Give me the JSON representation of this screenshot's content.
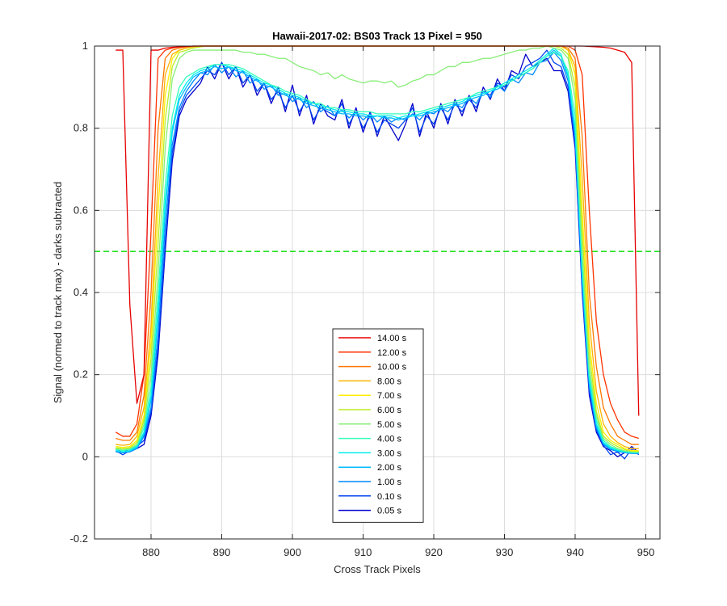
{
  "chart_data": {
    "type": "line",
    "title": "Hawaii-2017-02: BS03  Track 13 Pixel = 950",
    "xlabel": "Cross Track Pixels",
    "ylabel": "Signal (normed to track max) - darks subtracted",
    "xlim": [
      872,
      952
    ],
    "ylim": [
      -0.2,
      1.0
    ],
    "xticks": [
      880,
      890,
      900,
      910,
      920,
      930,
      940,
      950
    ],
    "yticks": [
      -0.2,
      0,
      0.2,
      0.4,
      0.6,
      0.8,
      1.0
    ],
    "grid": true,
    "legend_position": "lower-center",
    "x": [
      875,
      876,
      877,
      878,
      879,
      880,
      881,
      882,
      883,
      884,
      885,
      886,
      887,
      888,
      889,
      890,
      891,
      892,
      893,
      894,
      895,
      896,
      897,
      898,
      899,
      900,
      901,
      902,
      903,
      904,
      905,
      906,
      907,
      908,
      909,
      910,
      911,
      912,
      913,
      914,
      915,
      916,
      917,
      918,
      919,
      920,
      921,
      922,
      923,
      924,
      925,
      926,
      927,
      928,
      929,
      930,
      931,
      932,
      933,
      934,
      935,
      936,
      937,
      938,
      939,
      940,
      941,
      942,
      943,
      944,
      945,
      946,
      947,
      948,
      949
    ],
    "threshold": {
      "y": 0.5,
      "color": "#00dd00"
    },
    "series": [
      {
        "name": "14.00 s",
        "color": "#e60000",
        "values": [
          0.99,
          0.99,
          0.37,
          0.13,
          0.2,
          0.99,
          0.99,
          0.995,
          0.997,
          0.998,
          0.999,
          1.0,
          1.0,
          1.0,
          1.0,
          1.0,
          1.0,
          1.0,
          1.0,
          1.0,
          1.0,
          1.0,
          1.0,
          1.0,
          1.0,
          1.0,
          1.0,
          1.0,
          1.0,
          1.0,
          1.0,
          1.0,
          1.0,
          1.0,
          1.0,
          1.0,
          1.0,
          1.0,
          1.0,
          1.0,
          1.0,
          1.0,
          1.0,
          1.0,
          1.0,
          1.0,
          1.0,
          1.0,
          1.0,
          1.0,
          1.0,
          1.0,
          1.0,
          1.0,
          1.0,
          1.0,
          1.0,
          1.0,
          1.0,
          1.0,
          1.0,
          1.0,
          1.0,
          1.0,
          1.0,
          1.0,
          1.0,
          0.999,
          0.998,
          0.997,
          0.995,
          0.99,
          0.985,
          0.96,
          0.1
        ]
      },
      {
        "name": "12.00 s",
        "color": "#ff3300",
        "values": [
          0.06,
          0.05,
          0.05,
          0.08,
          0.2,
          0.55,
          0.97,
          0.99,
          0.995,
          0.998,
          0.999,
          1.0,
          1.0,
          1.0,
          1.0,
          1.0,
          1.0,
          1.0,
          1.0,
          1.0,
          1.0,
          1.0,
          1.0,
          1.0,
          1.0,
          1.0,
          1.0,
          1.0,
          1.0,
          1.0,
          1.0,
          1.0,
          1.0,
          1.0,
          1.0,
          1.0,
          1.0,
          1.0,
          1.0,
          1.0,
          1.0,
          1.0,
          1.0,
          1.0,
          1.0,
          1.0,
          1.0,
          1.0,
          1.0,
          1.0,
          1.0,
          1.0,
          1.0,
          1.0,
          1.0,
          1.0,
          1.0,
          1.0,
          1.0,
          1.0,
          1.0,
          1.0,
          1.0,
          1.0,
          1.0,
          0.99,
          0.93,
          0.6,
          0.33,
          0.2,
          0.13,
          0.09,
          0.06,
          0.05,
          0.045
        ]
      },
      {
        "name": "10.00 s",
        "color": "#ff7700",
        "values": [
          0.045,
          0.04,
          0.04,
          0.06,
          0.15,
          0.4,
          0.8,
          0.97,
          0.99,
          0.995,
          0.998,
          0.999,
          1.0,
          1.0,
          1.0,
          1.0,
          1.0,
          1.0,
          1.0,
          1.0,
          1.0,
          1.0,
          1.0,
          1.0,
          1.0,
          1.0,
          1.0,
          1.0,
          1.0,
          1.0,
          1.0,
          1.0,
          1.0,
          1.0,
          1.0,
          1.0,
          1.0,
          1.0,
          1.0,
          1.0,
          1.0,
          1.0,
          1.0,
          1.0,
          1.0,
          1.0,
          1.0,
          1.0,
          1.0,
          1.0,
          1.0,
          1.0,
          1.0,
          1.0,
          1.0,
          1.0,
          1.0,
          1.0,
          1.0,
          1.0,
          1.0,
          1.0,
          1.0,
          1.0,
          0.995,
          0.97,
          0.78,
          0.4,
          0.22,
          0.12,
          0.08,
          0.05,
          0.04,
          0.03,
          0.03
        ]
      },
      {
        "name": "8.00 s",
        "color": "#ffb300",
        "values": [
          0.03,
          0.028,
          0.03,
          0.05,
          0.12,
          0.32,
          0.68,
          0.93,
          0.98,
          0.99,
          0.995,
          0.998,
          1.0,
          1.0,
          1.0,
          1.0,
          1.0,
          1.0,
          1.0,
          1.0,
          1.0,
          1.0,
          1.0,
          1.0,
          1.0,
          1.0,
          1.0,
          1.0,
          1.0,
          1.0,
          1.0,
          1.0,
          1.0,
          1.0,
          1.0,
          1.0,
          1.0,
          1.0,
          1.0,
          1.0,
          1.0,
          1.0,
          1.0,
          1.0,
          1.0,
          1.0,
          1.0,
          1.0,
          1.0,
          1.0,
          1.0,
          1.0,
          1.0,
          1.0,
          1.0,
          1.0,
          1.0,
          1.0,
          1.0,
          1.0,
          1.0,
          1.0,
          1.0,
          1.0,
          0.99,
          0.95,
          0.68,
          0.33,
          0.16,
          0.08,
          0.05,
          0.035,
          0.025,
          0.02,
          0.02
        ]
      },
      {
        "name": "7.00 s",
        "color": "#ffee00",
        "values": [
          0.025,
          0.023,
          0.025,
          0.04,
          0.1,
          0.28,
          0.6,
          0.88,
          0.97,
          0.99,
          0.995,
          0.998,
          1.0,
          1.0,
          1.0,
          1.0,
          1.0,
          1.0,
          1.0,
          1.0,
          1.0,
          1.0,
          1.0,
          1.0,
          1.0,
          1.0,
          1.0,
          1.0,
          1.0,
          1.0,
          1.0,
          1.0,
          1.0,
          1.0,
          1.0,
          1.0,
          1.0,
          1.0,
          1.0,
          1.0,
          1.0,
          1.0,
          1.0,
          1.0,
          1.0,
          1.0,
          1.0,
          1.0,
          1.0,
          1.0,
          1.0,
          1.0,
          1.0,
          1.0,
          1.0,
          1.0,
          1.0,
          1.0,
          1.0,
          1.0,
          1.0,
          1.0,
          1.0,
          1.0,
          0.99,
          0.93,
          0.6,
          0.28,
          0.13,
          0.06,
          0.04,
          0.03,
          0.02,
          0.015,
          0.015
        ]
      },
      {
        "name": "6.00 s",
        "color": "#bbee22",
        "values": [
          0.022,
          0.02,
          0.022,
          0.035,
          0.09,
          0.24,
          0.52,
          0.82,
          0.95,
          0.985,
          0.99,
          0.995,
          0.998,
          1.0,
          1.0,
          1.0,
          1.0,
          1.0,
          1.0,
          1.0,
          1.0,
          1.0,
          1.0,
          1.0,
          1.0,
          1.0,
          1.0,
          1.0,
          1.0,
          1.0,
          1.0,
          1.0,
          1.0,
          1.0,
          1.0,
          1.0,
          1.0,
          1.0,
          1.0,
          1.0,
          1.0,
          1.0,
          1.0,
          1.0,
          1.0,
          1.0,
          1.0,
          1.0,
          1.0,
          1.0,
          1.0,
          1.0,
          1.0,
          1.0,
          1.0,
          1.0,
          1.0,
          1.0,
          1.0,
          1.0,
          1.0,
          1.0,
          1.0,
          0.995,
          0.98,
          0.9,
          0.55,
          0.25,
          0.11,
          0.05,
          0.035,
          0.025,
          0.018,
          0.014,
          0.013
        ]
      },
      {
        "name": "5.00 s",
        "color": "#88ee77",
        "values": [
          0.02,
          0.018,
          0.02,
          0.03,
          0.08,
          0.2,
          0.45,
          0.75,
          0.92,
          0.97,
          0.985,
          0.99,
          0.99,
          0.99,
          0.99,
          0.99,
          0.99,
          0.99,
          0.985,
          0.985,
          0.98,
          0.98,
          0.975,
          0.97,
          0.97,
          0.96,
          0.95,
          0.945,
          0.94,
          0.93,
          0.935,
          0.92,
          0.93,
          0.92,
          0.915,
          0.91,
          0.915,
          0.915,
          0.91,
          0.915,
          0.9,
          0.905,
          0.915,
          0.92,
          0.93,
          0.93,
          0.94,
          0.95,
          0.95,
          0.96,
          0.96,
          0.965,
          0.97,
          0.97,
          0.975,
          0.98,
          0.985,
          0.99,
          0.99,
          0.995,
          0.995,
          1.0,
          0.995,
          0.99,
          0.97,
          0.87,
          0.5,
          0.22,
          0.1,
          0.045,
          0.03,
          0.02,
          0.015,
          0.012,
          0.012
        ]
      },
      {
        "name": "4.00 s",
        "color": "#33ffbb",
        "values": [
          0.018,
          0.015,
          0.018,
          0.028,
          0.07,
          0.17,
          0.4,
          0.66,
          0.83,
          0.9,
          0.925,
          0.935,
          0.945,
          0.95,
          0.955,
          0.955,
          0.955,
          0.95,
          0.945,
          0.935,
          0.925,
          0.915,
          0.905,
          0.9,
          0.89,
          0.885,
          0.88,
          0.87,
          0.86,
          0.86,
          0.85,
          0.85,
          0.845,
          0.845,
          0.84,
          0.84,
          0.84,
          0.835,
          0.835,
          0.835,
          0.835,
          0.835,
          0.84,
          0.84,
          0.845,
          0.85,
          0.855,
          0.86,
          0.865,
          0.87,
          0.875,
          0.885,
          0.89,
          0.895,
          0.9,
          0.905,
          0.915,
          0.925,
          0.935,
          0.945,
          0.96,
          0.975,
          0.985,
          0.975,
          0.94,
          0.83,
          0.47,
          0.2,
          0.09,
          0.04,
          0.025,
          0.018,
          0.013,
          0.011,
          0.01
        ]
      },
      {
        "name": "3.00 s",
        "color": "#00eeee",
        "values": [
          0.015,
          0.012,
          0.015,
          0.025,
          0.06,
          0.15,
          0.36,
          0.62,
          0.8,
          0.88,
          0.91,
          0.93,
          0.94,
          0.945,
          0.955,
          0.955,
          0.95,
          0.945,
          0.94,
          0.93,
          0.92,
          0.91,
          0.905,
          0.895,
          0.885,
          0.88,
          0.875,
          0.865,
          0.86,
          0.855,
          0.85,
          0.845,
          0.84,
          0.84,
          0.835,
          0.835,
          0.83,
          0.83,
          0.83,
          0.83,
          0.825,
          0.83,
          0.83,
          0.835,
          0.84,
          0.845,
          0.85,
          0.855,
          0.86,
          0.865,
          0.875,
          0.88,
          0.885,
          0.89,
          0.9,
          0.91,
          0.92,
          0.93,
          0.94,
          0.95,
          0.965,
          0.98,
          0.995,
          0.98,
          0.93,
          0.8,
          0.45,
          0.19,
          0.08,
          0.035,
          0.022,
          0.016,
          0.012,
          0.01,
          0.01
        ]
      },
      {
        "name": "2.00 s",
        "color": "#00bbff",
        "values": [
          0.015,
          0.012,
          0.014,
          0.022,
          0.055,
          0.14,
          0.34,
          0.6,
          0.79,
          0.87,
          0.9,
          0.925,
          0.935,
          0.94,
          0.95,
          0.945,
          0.95,
          0.94,
          0.935,
          0.925,
          0.915,
          0.905,
          0.9,
          0.89,
          0.88,
          0.875,
          0.87,
          0.86,
          0.855,
          0.85,
          0.845,
          0.84,
          0.835,
          0.835,
          0.83,
          0.83,
          0.825,
          0.83,
          0.825,
          0.825,
          0.82,
          0.825,
          0.83,
          0.83,
          0.835,
          0.84,
          0.845,
          0.85,
          0.855,
          0.86,
          0.87,
          0.875,
          0.88,
          0.89,
          0.895,
          0.905,
          0.915,
          0.925,
          0.935,
          0.945,
          0.96,
          0.975,
          0.99,
          0.975,
          0.925,
          0.79,
          0.44,
          0.18,
          0.075,
          0.032,
          0.02,
          0.015,
          0.011,
          0.009,
          0.009
        ]
      },
      {
        "name": "1.00 s",
        "color": "#0088ff",
        "values": [
          0.012,
          0.01,
          0.012,
          0.02,
          0.05,
          0.12,
          0.3,
          0.56,
          0.76,
          0.85,
          0.89,
          0.915,
          0.935,
          0.93,
          0.955,
          0.935,
          0.95,
          0.925,
          0.94,
          0.91,
          0.92,
          0.895,
          0.905,
          0.88,
          0.885,
          0.865,
          0.875,
          0.85,
          0.865,
          0.84,
          0.855,
          0.83,
          0.845,
          0.825,
          0.84,
          0.82,
          0.835,
          0.815,
          0.83,
          0.815,
          0.825,
          0.82,
          0.835,
          0.82,
          0.84,
          0.835,
          0.85,
          0.84,
          0.86,
          0.85,
          0.875,
          0.86,
          0.89,
          0.875,
          0.905,
          0.89,
          0.92,
          0.91,
          0.935,
          0.93,
          0.96,
          0.965,
          0.985,
          0.965,
          0.915,
          0.78,
          0.42,
          0.17,
          0.07,
          0.03,
          0.018,
          0.013,
          0.01,
          0.008,
          0.008
        ]
      },
      {
        "name": "0.10 s",
        "color": "#0044ee",
        "values": [
          0.015,
          0.005,
          0.015,
          0.025,
          0.04,
          0.11,
          0.27,
          0.52,
          0.74,
          0.84,
          0.88,
          0.9,
          0.92,
          0.94,
          0.93,
          0.96,
          0.93,
          0.95,
          0.91,
          0.93,
          0.89,
          0.91,
          0.87,
          0.89,
          0.85,
          0.88,
          0.84,
          0.87,
          0.82,
          0.85,
          0.84,
          0.83,
          0.86,
          0.81,
          0.84,
          0.8,
          0.83,
          0.79,
          0.82,
          0.81,
          0.8,
          0.82,
          0.85,
          0.79,
          0.83,
          0.81,
          0.85,
          0.82,
          0.86,
          0.84,
          0.87,
          0.85,
          0.89,
          0.88,
          0.91,
          0.9,
          0.93,
          0.92,
          0.95,
          0.96,
          0.97,
          0.99,
          0.96,
          0.95,
          0.9,
          0.76,
          0.41,
          0.16,
          0.065,
          0.028,
          0.005,
          0.012,
          -0.005,
          0.02,
          0.005
        ]
      },
      {
        "name": "0.05 s",
        "color": "#0000cc",
        "values": [
          0.02,
          0.01,
          0.02,
          0.02,
          0.03,
          0.1,
          0.25,
          0.5,
          0.72,
          0.83,
          0.87,
          0.89,
          0.91,
          0.95,
          0.92,
          0.96,
          0.92,
          0.95,
          0.9,
          0.93,
          0.88,
          0.91,
          0.86,
          0.9,
          0.84,
          0.905,
          0.83,
          0.88,
          0.81,
          0.86,
          0.83,
          0.82,
          0.87,
          0.8,
          0.85,
          0.79,
          0.84,
          0.78,
          0.83,
          0.8,
          0.77,
          0.81,
          0.86,
          0.78,
          0.84,
          0.8,
          0.86,
          0.81,
          0.87,
          0.83,
          0.88,
          0.84,
          0.9,
          0.87,
          0.92,
          0.89,
          0.94,
          0.93,
          0.98,
          0.95,
          0.96,
          0.97,
          0.94,
          0.94,
          0.89,
          0.75,
          0.4,
          0.15,
          0.06,
          0.025,
          0.015,
          0.0,
          0.01,
          0.025,
          0.01
        ]
      }
    ]
  }
}
